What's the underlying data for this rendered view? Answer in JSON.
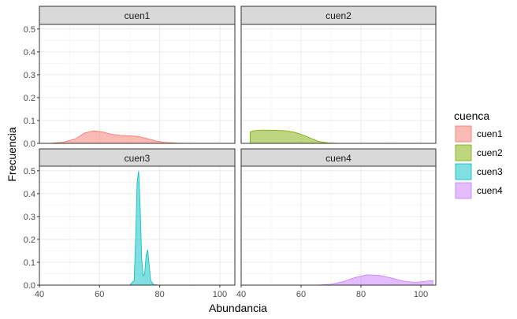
{
  "chart_data": {
    "type": "area",
    "subtype": "density-facets",
    "xlabel": "Abundancia",
    "ylabel": "Frecuencia",
    "xlim": [
      40,
      105
    ],
    "ylim": [
      0,
      0.52
    ],
    "x_ticks": [
      40,
      60,
      80,
      100
    ],
    "y_ticks": [
      "0.0",
      "0.1",
      "0.2",
      "0.3",
      "0.4",
      "0.5"
    ],
    "grid": true,
    "legend_title": "cuenca",
    "legend_position": "right",
    "facets": [
      {
        "label": "cuen1",
        "name": "cuen1",
        "fill": "#F8766D",
        "x": [
          43,
          48,
          52,
          55,
          58,
          61,
          64,
          67,
          70,
          73,
          76,
          79,
          82,
          86,
          90,
          100,
          104
        ],
        "y": [
          0.0,
          0.005,
          0.02,
          0.045,
          0.055,
          0.05,
          0.04,
          0.035,
          0.033,
          0.03,
          0.02,
          0.01,
          0.004,
          0.001,
          0.0,
          0.0,
          0.0
        ]
      },
      {
        "label": "cuen2",
        "name": "cuen2",
        "fill": "#7CAE00",
        "x": [
          43,
          44,
          47,
          51,
          55,
          58,
          61,
          64,
          66,
          69,
          73,
          80,
          90,
          104
        ],
        "y": [
          0.05,
          0.055,
          0.058,
          0.057,
          0.055,
          0.048,
          0.035,
          0.018,
          0.008,
          0.002,
          0.0,
          0.0,
          0.0,
          0.0
        ]
      },
      {
        "label": "cuen3",
        "name": "cuen3",
        "fill": "#00BFC4",
        "x": [
          43,
          70,
          71.5,
          72,
          72.5,
          73,
          73.5,
          74,
          74.5,
          75,
          75.5,
          76,
          76.5,
          77,
          78,
          80,
          104
        ],
        "y": [
          0.0,
          0.0,
          0.02,
          0.2,
          0.45,
          0.5,
          0.35,
          0.12,
          0.04,
          0.05,
          0.13,
          0.155,
          0.09,
          0.02,
          0.002,
          0.0,
          0.0
        ]
      },
      {
        "label": "cuen4",
        "name": "cuen4",
        "fill": "#C77CFF",
        "x": [
          43,
          65,
          70,
          74,
          78,
          82,
          86,
          90,
          94,
          98,
          101,
          104
        ],
        "y": [
          0.0,
          0.0,
          0.004,
          0.015,
          0.033,
          0.045,
          0.043,
          0.032,
          0.018,
          0.012,
          0.016,
          0.02
        ]
      }
    ]
  }
}
